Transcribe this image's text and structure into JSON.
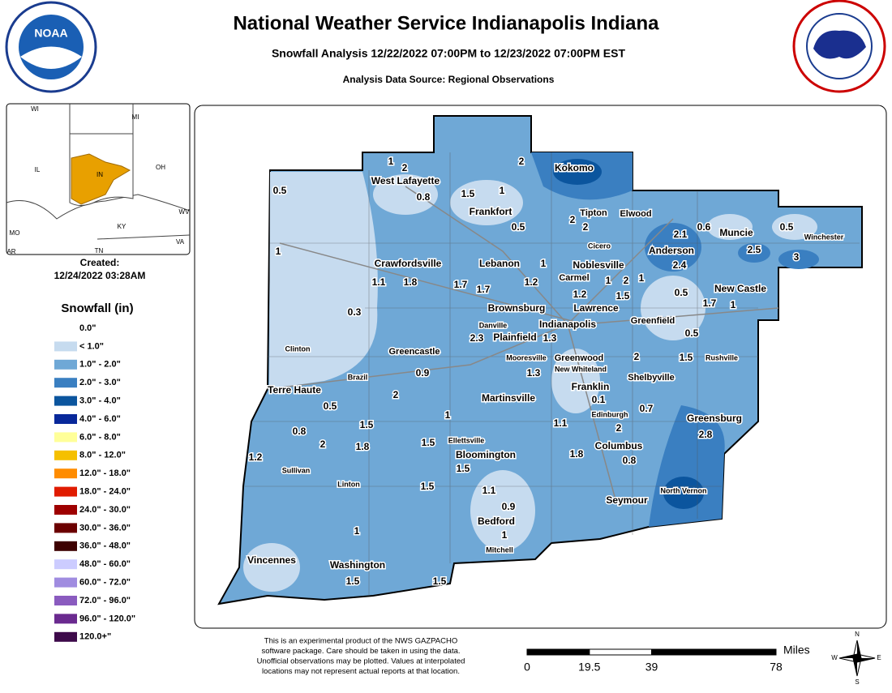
{
  "header": {
    "title": "National Weather Service Indianapolis Indiana",
    "subtitle": "Snowfall Analysis 12/22/2022 07:00PM to 12/23/2022 07:00PM EST",
    "source": "Analysis Data Source: Regional Observations"
  },
  "logos": {
    "noaa": "NOAA"
  },
  "inset": {
    "labels": [
      "WI",
      "MI",
      "IL",
      "IN",
      "OH",
      "KY",
      "MO",
      "TN",
      "WV",
      "VA",
      "AR"
    ]
  },
  "created": {
    "label": "Created:",
    "date": "12/24/2022 03:28AM"
  },
  "legend": {
    "title": "Snowfall (in)",
    "items": [
      {
        "label": "0.0\"",
        "color": "#ffffff"
      },
      {
        "label": "< 1.0\"",
        "color": "#c6dbef"
      },
      {
        "label": "1.0\" - 2.0\"",
        "color": "#6fa8d6"
      },
      {
        "label": "2.0\" - 3.0\"",
        "color": "#3a7fc1"
      },
      {
        "label": "3.0\" - 4.0\"",
        "color": "#0b559e"
      },
      {
        "label": "4.0\" - 6.0\"",
        "color": "#08289a"
      },
      {
        "label": "6.0\" - 8.0\"",
        "color": "#ffff99"
      },
      {
        "label": "8.0\" - 12.0\"",
        "color": "#f5c000"
      },
      {
        "label": "12.0\" - 18.0\"",
        "color": "#ff8c00"
      },
      {
        "label": "18.0\" - 24.0\"",
        "color": "#e01b00"
      },
      {
        "label": "24.0\" - 30.0\"",
        "color": "#9e0000"
      },
      {
        "label": "30.0\" - 36.0\"",
        "color": "#6b0000"
      },
      {
        "label": "36.0\" - 48.0\"",
        "color": "#3d0000"
      },
      {
        "label": "48.0\" - 60.0\"",
        "color": "#ccccff"
      },
      {
        "label": "60.0\" - 72.0\"",
        "color": "#a08ce0"
      },
      {
        "label": "72.0\" - 96.0\"",
        "color": "#8a5bbf"
      },
      {
        "label": "96.0\" - 120.0\"",
        "color": "#6a2a8f"
      },
      {
        "label": "120.0+\"",
        "color": "#3d0a4a"
      }
    ]
  },
  "cities": {
    "major": [
      "Kokomo",
      "West Lafayette",
      "Frankfort",
      "Tipton",
      "Elwood",
      "Muncie",
      "Crawfordsville",
      "Lebanon",
      "Noblesville",
      "Anderson",
      "Carmel",
      "New Castle",
      "Brownsburg",
      "Lawrence",
      "Indianapolis",
      "Greenfield",
      "Plainfield",
      "Greencastle",
      "Greenwood",
      "Shelbyville",
      "Terre Haute",
      "Franklin",
      "Martinsville",
      "Greensburg",
      "Columbus",
      "Bloomington",
      "Seymour",
      "Bedford",
      "Vincennes",
      "Washington"
    ],
    "minor": [
      "Winchester",
      "Cicero",
      "Danville",
      "Clinton",
      "Mooresville",
      "Rushville",
      "New Whiteland",
      "Brazil",
      "Edinburgh",
      "Ellettsville",
      "Sullivan",
      "Linton",
      "North Vernon",
      "Mitchell"
    ]
  },
  "observations": [
    1,
    2,
    2,
    0.5,
    0.8,
    1.5,
    1,
    0.5,
    2,
    2,
    2.1,
    0.6,
    0.5,
    2.5,
    1,
    1,
    2.4,
    3,
    1.1,
    1.8,
    1.7,
    1.7,
    1.2,
    1,
    2,
    1,
    1.2,
    1.5,
    0.5,
    1.7,
    1,
    0.3,
    2.3,
    1.3,
    0.5,
    2,
    1.5,
    0.9,
    1.3,
    2,
    0.5,
    0.1,
    0.7,
    1,
    1.5,
    1.1,
    2,
    2.8,
    0.8,
    2,
    1.8,
    1.5,
    1.8,
    0.8,
    1.2,
    1.5,
    1.5,
    1.1,
    0.9,
    1,
    1,
    1.5,
    1.5
  ],
  "disclaimer": [
    "This is an experimental product of the NWS GAZPACHO",
    "software package. Care should be taken in using the data.",
    "Unofficial observations may be plotted. Values at interpolated",
    "locations may not represent actual reports at that location."
  ],
  "scale": {
    "unit": "Miles",
    "ticks": [
      0,
      19.5,
      39,
      78
    ]
  },
  "compass": [
    "N",
    "S",
    "E",
    "W"
  ]
}
